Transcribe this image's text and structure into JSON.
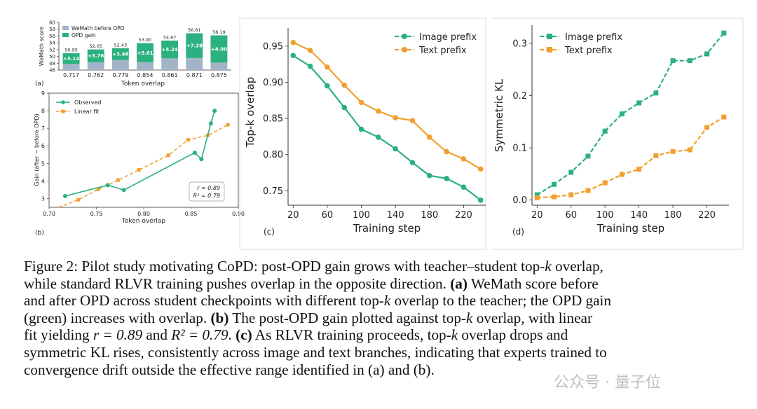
{
  "chart_data": [
    {
      "id": "a",
      "type": "bar",
      "panel_label": "(a)",
      "ylabel": "WeMath score",
      "xlabel": "Token overlap",
      "categories": [
        "0.717",
        "0.762",
        "0.779",
        "0.854",
        "0.861",
        "0.871",
        "0.875"
      ],
      "ylim": [
        46,
        60
      ],
      "yticks": [
        46,
        48,
        50,
        52,
        54,
        56,
        58,
        60
      ],
      "series": [
        {
          "name": "WeMath before OPD",
          "color": "#a3b4c9",
          "values": [
            47.81,
            48.29,
            48.95,
            48.29,
            49.43,
            49.53,
            48.19
          ]
        },
        {
          "name": "OPD gain",
          "color": "#2bb07f",
          "values": [
            3.14,
            3.76,
            3.48,
            5.61,
            5.24,
            7.28,
            8.0
          ]
        }
      ],
      "gain_labels": [
        "+3.14",
        "+3.76",
        "+3.48",
        "+5.61",
        "+5.24",
        "+7.28",
        "+8.00"
      ],
      "total_labels": [
        "50.95",
        "52.05",
        "52.43",
        "53.90",
        "54.67",
        "56.81",
        "56.19"
      ],
      "totals": [
        50.95,
        52.05,
        52.43,
        53.9,
        54.67,
        56.81,
        56.19
      ]
    },
    {
      "id": "b",
      "type": "scatter",
      "panel_label": "(b)",
      "xlabel": "Token overlap",
      "ylabel": "Gain (after − before OPD)",
      "xlim": [
        0.7,
        0.9
      ],
      "ylim": [
        2.5,
        9
      ],
      "xticks": [
        "0.70",
        "0.75",
        "0.80",
        "0.85",
        "0.90"
      ],
      "yticks": [
        "3",
        "4",
        "5",
        "6",
        "7",
        "8",
        "9"
      ],
      "series": [
        {
          "name": "Observed",
          "color": "#2bb07f",
          "x": [
            0.717,
            0.762,
            0.779,
            0.854,
            0.861,
            0.871,
            0.875
          ],
          "y": [
            3.14,
            3.76,
            3.48,
            5.61,
            5.24,
            7.28,
            8.0
          ]
        },
        {
          "name": "Linear fit",
          "color": "#f0a030",
          "x": [
            0.71,
            0.731,
            0.752,
            0.773,
            0.795,
            0.826,
            0.847,
            0.868,
            0.889
          ],
          "y": [
            2.5,
            2.93,
            3.52,
            4.05,
            4.63,
            5.46,
            6.34,
            6.6,
            7.2
          ]
        }
      ],
      "annotation": [
        "r = 0.89",
        "R² = 0.79"
      ]
    },
    {
      "id": "c",
      "type": "line",
      "panel_label": "(c)",
      "xlabel": "Training step",
      "ylabel": "Top-k overlap",
      "xlim": [
        14,
        246
      ],
      "ylim": [
        0.73,
        0.975
      ],
      "xticks": [
        "20",
        "60",
        "100",
        "140",
        "180",
        "220"
      ],
      "yticks": [
        "0.75",
        "0.80",
        "0.85",
        "0.90",
        "0.95"
      ],
      "x": [
        20,
        40,
        60,
        80,
        100,
        120,
        140,
        160,
        180,
        200,
        220,
        240
      ],
      "series": [
        {
          "name": "Image prefix",
          "color": "#2bb07f",
          "values": [
            0.937,
            0.922,
            0.895,
            0.865,
            0.835,
            0.824,
            0.808,
            0.789,
            0.771,
            0.767,
            0.755,
            0.737
          ]
        },
        {
          "name": "Text prefix",
          "color": "#f0a030",
          "values": [
            0.955,
            0.944,
            0.921,
            0.896,
            0.872,
            0.86,
            0.851,
            0.847,
            0.824,
            0.804,
            0.794,
            0.78
          ]
        }
      ]
    },
    {
      "id": "d",
      "type": "line",
      "panel_label": "(d)",
      "xlabel": "Training step",
      "ylabel": "Symmetric KL",
      "xlim": [
        14,
        246
      ],
      "ylim": [
        -0.01,
        0.335
      ],
      "xticks": [
        "20",
        "60",
        "100",
        "140",
        "180",
        "220"
      ],
      "yticks": [
        "0.0",
        "0.1",
        "0.2",
        "0.3"
      ],
      "x": [
        20,
        40,
        60,
        80,
        100,
        120,
        140,
        160,
        180,
        200,
        220,
        240
      ],
      "series": [
        {
          "name": "Image prefix",
          "color": "#2bb07f",
          "values": [
            0.01,
            0.03,
            0.053,
            0.084,
            0.132,
            0.165,
            0.186,
            0.205,
            0.267,
            0.267,
            0.28,
            0.32
          ]
        },
        {
          "name": "Text prefix",
          "color": "#f0a030",
          "values": [
            0.004,
            0.006,
            0.01,
            0.018,
            0.033,
            0.049,
            0.059,
            0.085,
            0.093,
            0.096,
            0.139,
            0.159
          ]
        }
      ]
    }
  ],
  "caption": {
    "fig": "Figure 2: Pilot study motivating CoPD: post-OPD gain grows with teacher–student top-",
    "k1": "k",
    "l1b": " overlap,",
    "l2": "while standard RLVR training pushes overlap in the opposite direction. ",
    "a_tag": "(a)",
    "a_text": " WeMath score before",
    "l3": "and after OPD across student checkpoints with different top-",
    "k2": "k",
    "l3b": " overlap to the teacher; the OPD gain",
    "l4": "(green) increases with overlap. ",
    "b_tag": "(b)",
    "b_text": " The post-OPD gain plotted against top-",
    "k3": "k",
    "b_text2": " overlap, with linear",
    "l5": "fit yielding ",
    "r_expr": "r = 0.89",
    "and": " and ",
    "r2_expr": "R² = 0.79",
    "l5b": ". ",
    "c_tag": "(c)",
    "c_text": " As RLVR training proceeds, top-",
    "k4": "k",
    "c_text2": " overlap drops and",
    "l6": "symmetric KL rises, consistently across image and text branches, indicating that experts trained to",
    "l7": "convergence drift outside the effective range identified in (a) and (b)."
  },
  "watermark": "公众号 · 量子位"
}
